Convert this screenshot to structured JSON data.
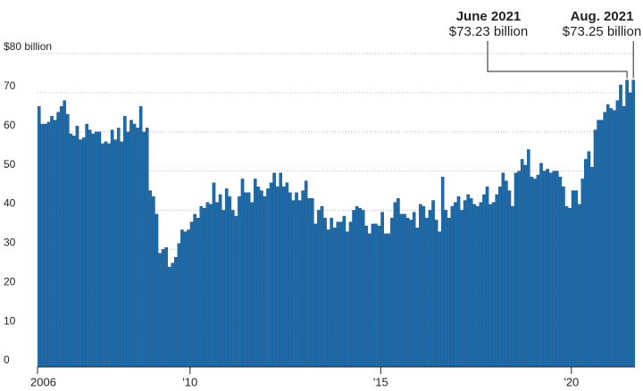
{
  "chart_data": {
    "type": "bar",
    "categories": [
      "2006",
      null,
      null,
      null,
      null,
      null,
      null,
      null,
      null,
      null,
      null,
      null,
      null,
      null,
      null,
      null,
      null,
      null,
      null,
      null,
      null,
      null,
      null,
      null,
      null,
      null,
      null,
      null,
      null,
      null,
      null,
      null,
      null,
      null,
      null,
      null,
      null,
      null,
      null,
      null,
      null,
      null,
      null,
      null,
      null,
      null,
      null,
      null,
      "'10",
      null,
      null,
      null,
      null,
      null,
      null,
      null,
      null,
      null,
      null,
      null,
      null,
      null,
      null,
      null,
      null,
      null,
      null,
      null,
      null,
      null,
      null,
      null,
      null,
      null,
      null,
      null,
      null,
      null,
      null,
      null,
      null,
      null,
      null,
      null,
      null,
      null,
      null,
      null,
      null,
      null,
      null,
      null,
      null,
      null,
      null,
      null,
      null,
      null,
      null,
      null,
      null,
      null,
      null,
      null,
      null,
      null,
      null,
      null,
      "'15",
      null,
      null,
      null,
      null,
      null,
      null,
      null,
      null,
      null,
      null,
      null,
      null,
      null,
      null,
      null,
      null,
      null,
      null,
      null,
      null,
      null,
      null,
      null,
      null,
      null,
      null,
      null,
      null,
      null,
      null,
      null,
      null,
      null,
      null,
      null,
      null,
      null,
      null,
      null,
      null,
      null,
      null,
      null,
      null,
      null,
      null,
      null,
      null,
      null,
      null,
      null,
      null,
      null,
      null,
      null,
      null,
      null,
      null,
      null,
      "'20",
      null,
      null,
      null,
      null,
      null,
      null,
      null,
      null,
      null,
      null,
      null,
      null,
      null,
      null,
      null,
      null,
      null,
      null,
      null
    ],
    "values": [
      66.5,
      62,
      62,
      62.5,
      64,
      63,
      65,
      66.5,
      68,
      64.5,
      59.5,
      59,
      61.5,
      58,
      58.5,
      62,
      60.5,
      59.5,
      60,
      60,
      57,
      57.5,
      57,
      60.5,
      58,
      61,
      57.5,
      64,
      60,
      63,
      62,
      61,
      66.5,
      60,
      61,
      45,
      43.5,
      39,
      29,
      30,
      30.5,
      25.5,
      26.5,
      28,
      31.5,
      35,
      34.5,
      35,
      37,
      39,
      38,
      41,
      40.5,
      42,
      41.5,
      47,
      42,
      44,
      40,
      45.5,
      43.5,
      40,
      38.5,
      43.5,
      48,
      44.5,
      44.5,
      42,
      48,
      46,
      45,
      43.5,
      45.5,
      47,
      49.5,
      46,
      49.5,
      46,
      47,
      44.5,
      42.5,
      44.5,
      42.5,
      45,
      47.5,
      43,
      43,
      36.5,
      40,
      41,
      38,
      35,
      38,
      35.5,
      37,
      37,
      38.5,
      34.5,
      37,
      40,
      41,
      40.5,
      40,
      36,
      34,
      36.5,
      36.5,
      36,
      39.5,
      34,
      34,
      38,
      42,
      43,
      39,
      39,
      38,
      37.5,
      39.5,
      35.5,
      41.5,
      41,
      38,
      40,
      42.5,
      37.5,
      34.5,
      48.5,
      40,
      38,
      41,
      42,
      43.5,
      40,
      42.5,
      44,
      43,
      41.5,
      41,
      42,
      44,
      46,
      41.5,
      42,
      44,
      46,
      49.5,
      47.5,
      45,
      41,
      49.5,
      50,
      53,
      51.5,
      55.5,
      48.5,
      48,
      49,
      52,
      50,
      50.5,
      49.5,
      50,
      50,
      48.5,
      46,
      41,
      40.5,
      45,
      45,
      41.5,
      48,
      53,
      55,
      51,
      60.5,
      63,
      63,
      65,
      67,
      66,
      65.5,
      68,
      72,
      66.5,
      73.23,
      70,
      73.25
    ],
    "color": "#1f6aa8",
    "ylim": [
      0,
      80
    ],
    "yticks": [
      0,
      10,
      20,
      30,
      40,
      50,
      60,
      70,
      {
        "value": 80,
        "label": "$80 billion"
      }
    ],
    "grid": true,
    "annotations": [
      {
        "date": "June 2021",
        "label": "$73.23 billion",
        "value": 73.23
      },
      {
        "date": "Aug. 2021",
        "label": "$73.25 billion",
        "value": 73.25
      }
    ]
  }
}
